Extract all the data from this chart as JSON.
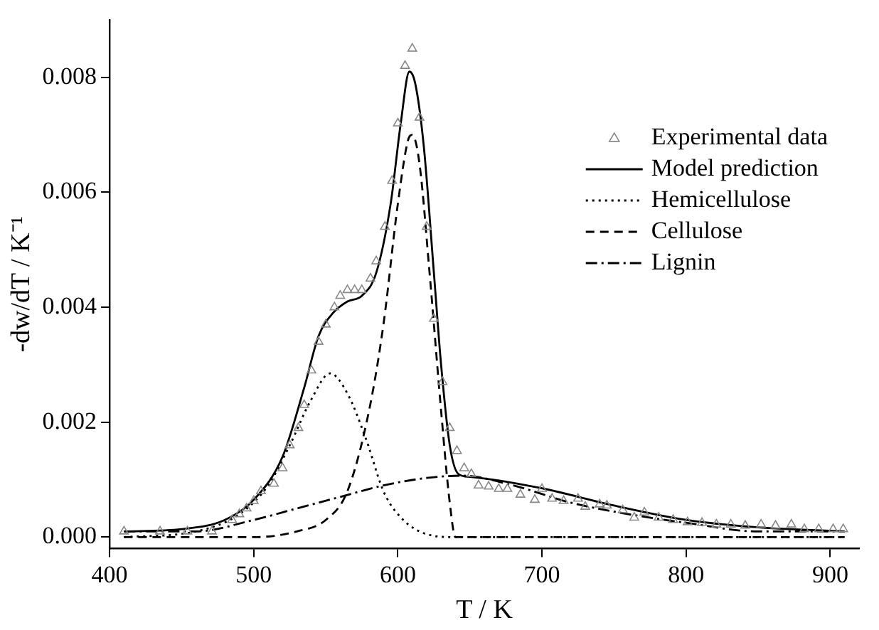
{
  "chart_data": {
    "type": "line",
    "xlabel": "T / K",
    "ylabel": "-dw/dT / K⁻¹",
    "xlim": [
      400,
      920
    ],
    "ylim": [
      -0.0002,
      0.009
    ],
    "xticks": [
      400,
      500,
      600,
      700,
      800,
      900
    ],
    "yticks": [
      {
        "value": 0,
        "label": "0.000"
      },
      0.002,
      0.004,
      0.006,
      0.008
    ],
    "grid": false,
    "legend": "top right",
    "series": [
      {
        "name": "Experimental data",
        "type": "scatter",
        "marker": "triangle",
        "color": "#888888",
        "x": [
          410,
          435,
          454,
          471,
          485,
          490,
          495,
          500,
          505,
          514,
          520,
          525,
          531,
          535,
          540,
          545,
          550,
          556,
          560,
          565,
          570,
          575,
          581,
          585,
          591,
          596,
          600,
          605,
          610,
          615,
          620,
          625,
          631,
          636,
          641,
          646,
          651,
          656,
          663,
          670,
          676,
          685,
          695,
          700,
          707,
          715,
          725,
          730,
          740,
          745,
          756,
          764,
          771,
          781,
          791,
          801,
          811,
          821,
          831,
          841,
          852,
          862,
          873,
          882,
          892,
          902,
          909
        ],
        "values": [
          0.0001,
          0.0001,
          0.0001,
          0.0001,
          0.0003,
          0.0004,
          0.0005,
          0.00063,
          0.0008,
          0.00093,
          0.0012,
          0.0016,
          0.0019,
          0.0023,
          0.0029,
          0.0034,
          0.0037,
          0.004,
          0.0042,
          0.0043,
          0.0043,
          0.0043,
          0.0045,
          0.0048,
          0.0054,
          0.0062,
          0.0072,
          0.0082,
          0.0085,
          0.0073,
          0.0054,
          0.0038,
          0.0027,
          0.0019,
          0.0015,
          0.0012,
          0.0011,
          0.0009,
          0.00088,
          0.00084,
          0.00084,
          0.00074,
          0.00065,
          0.00084,
          0.00067,
          0.00063,
          0.00067,
          0.00053,
          0.00057,
          0.00055,
          0.00047,
          0.00034,
          0.00043,
          0.00034,
          0.0003,
          0.00026,
          0.00025,
          0.00022,
          0.00022,
          0.0002,
          0.00022,
          0.0002,
          0.00022,
          0.00014,
          0.00014,
          0.00014,
          0.00014
        ]
      },
      {
        "name": "Model prediction",
        "line_style": "solid",
        "color": "#000000",
        "x": [
          410,
          450,
          480,
          500,
          520,
          535,
          545,
          555,
          565,
          575,
          585,
          595,
          602,
          608,
          612,
          618,
          625,
          630,
          636,
          642,
          650,
          700,
          750,
          800,
          850,
          910
        ],
        "values": [
          0.0001,
          0.00014,
          0.0003,
          0.00065,
          0.0014,
          0.0026,
          0.0035,
          0.0039,
          0.0041,
          0.0042,
          0.0046,
          0.0058,
          0.0072,
          0.0081,
          0.0079,
          0.0068,
          0.0046,
          0.003,
          0.0016,
          0.0011,
          0.00105,
          0.00085,
          0.00055,
          0.0003,
          0.00017,
          0.0001
        ]
      },
      {
        "name": "Hemicellulose",
        "line_style": "dotted",
        "color": "#000000",
        "x": [
          410,
          460,
          490,
          510,
          525,
          540,
          553,
          565,
          578,
          590,
          600,
          615,
          640,
          910
        ],
        "values": [
          0,
          0.0001,
          0.0004,
          0.0009,
          0.0016,
          0.0024,
          0.00285,
          0.0025,
          0.0017,
          0.0008,
          0.0004,
          0.0001,
          0,
          0
        ]
      },
      {
        "name": "Cellulose",
        "line_style": "dashed",
        "color": "#000000",
        "x": [
          410,
          500,
          530,
          550,
          565,
          580,
          590,
          600,
          607,
          610,
          615,
          622,
          630,
          636,
          640,
          910
        ],
        "values": [
          0,
          0,
          0.0001,
          0.0003,
          0.0008,
          0.0022,
          0.0037,
          0.0058,
          0.0069,
          0.007,
          0.0065,
          0.0046,
          0.0022,
          0.0006,
          0,
          0
        ]
      },
      {
        "name": "Lignin",
        "line_style": "dashdot",
        "color": "#000000",
        "x": [
          410,
          460,
          500,
          530,
          560,
          590,
          620,
          645,
          680,
          720,
          760,
          800,
          850,
          910
        ],
        "values": [
          0.0001,
          0.0001,
          0.0003,
          0.0005,
          0.0007,
          0.0009,
          0.00103,
          0.00107,
          0.0009,
          0.0006,
          0.0004,
          0.00025,
          0.0001,
          0.0001
        ]
      }
    ]
  }
}
